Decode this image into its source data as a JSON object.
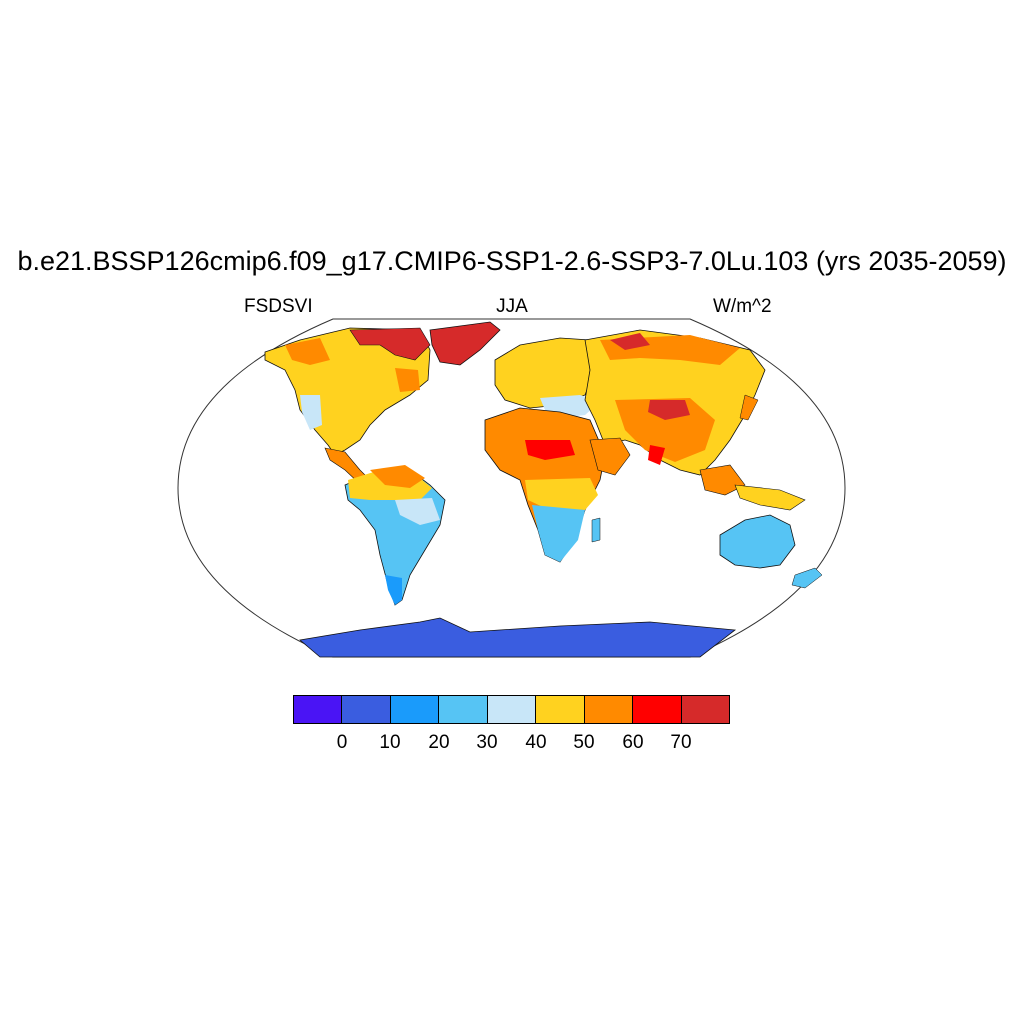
{
  "title": "b.e21.BSSP126cmip6.f09_g17.CMIP6-SSP1-2.6-SSP3-7.0Lu.103 (yrs 2035-2059)",
  "subtitle": {
    "left": "FSDSVI",
    "center": "JJA",
    "right": "W/m^2"
  },
  "colorbar": {
    "colors": [
      "#4a14f5",
      "#3a5de0",
      "#1a9bfb",
      "#56c4f4",
      "#c8e6f8",
      "#ffd21f",
      "#ff8a00",
      "#ff0000",
      "#d62a2a"
    ],
    "ticks": [
      "0",
      "10",
      "20",
      "30",
      "40",
      "50",
      "60",
      "70"
    ]
  }
}
